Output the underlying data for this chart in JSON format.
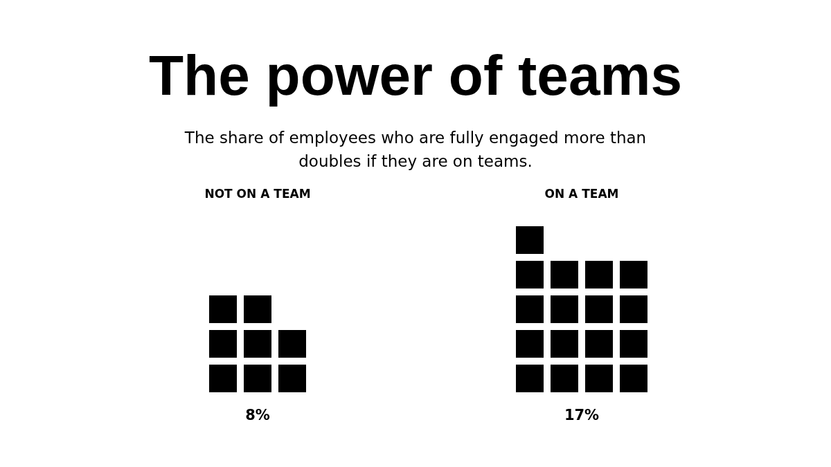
{
  "chart_data": {
    "type": "other",
    "title": "The power of teams",
    "subtitle": "The share of employees who are fully engaged more than doubles if they are on teams.",
    "categories": [
      "NOT ON A TEAM",
      "ON A TEAM"
    ],
    "values": [
      8,
      17
    ],
    "value_labels": [
      "8%",
      "17%"
    ],
    "color": "#000000"
  }
}
